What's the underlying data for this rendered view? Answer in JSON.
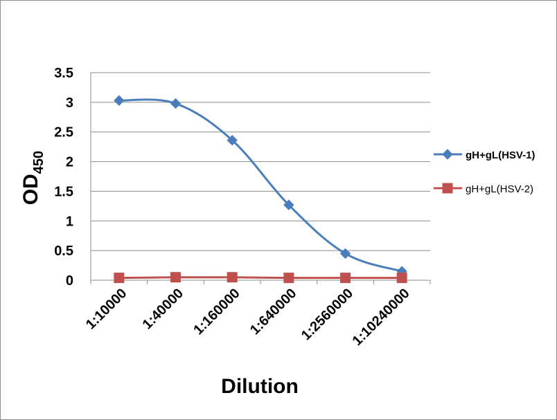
{
  "chart_data": {
    "type": "line",
    "title": "",
    "xlabel": "Dilution",
    "ylabel_main": "OD",
    "ylabel_sub": "450",
    "categories": [
      "1:10000",
      "1:40000",
      "1:160000",
      "1:640000",
      "1:2560000",
      "1:10240000"
    ],
    "ylim": [
      0,
      3.5
    ],
    "yticks": [
      "0",
      "0.5",
      "1",
      "1.5",
      "2",
      "2.5",
      "3",
      "3.5"
    ],
    "grid": true,
    "legend_position": "right",
    "series": [
      {
        "name": "gH+gL(HSV-1)",
        "color": "#4a7ebb",
        "marker": "diamond",
        "smooth": true,
        "label_bold": true,
        "values": [
          3.03,
          2.98,
          2.36,
          1.27,
          0.45,
          0.15
        ]
      },
      {
        "name": "gH+gL(HSV-2)",
        "color": "#c0504d",
        "marker": "square",
        "smooth": false,
        "label_bold": false,
        "values": [
          0.04,
          0.05,
          0.05,
          0.04,
          0.04,
          0.04
        ]
      }
    ]
  }
}
